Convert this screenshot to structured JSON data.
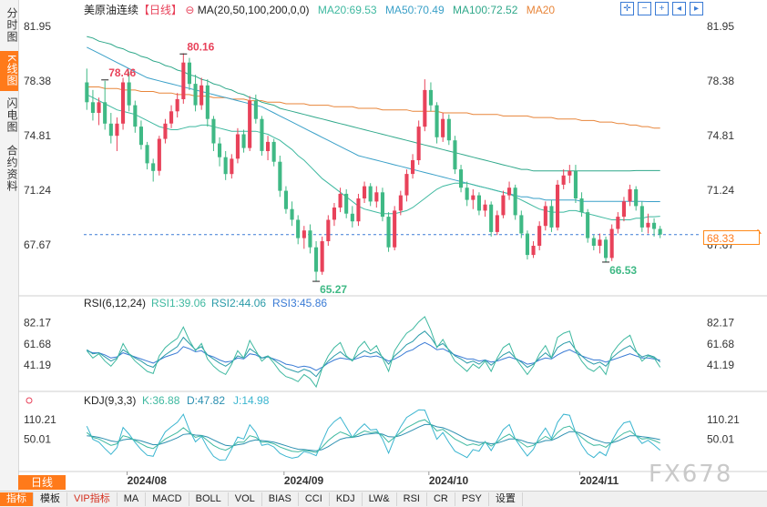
{
  "left_tabs": [
    {
      "label": "分时图",
      "active": false
    },
    {
      "label": "K线图",
      "active": true
    },
    {
      "label": "闪电图",
      "active": false
    },
    {
      "label": "合约资料",
      "active": false
    }
  ],
  "header": {
    "name": "美原油连续",
    "period": "【日线】",
    "ma_label": "MA(20,50,100,200,0,0)",
    "ma20": "MA20:69.53",
    "ma50": "MA50:70.49",
    "ma100": "MA100:72.52",
    "ma20_extra": "MA20"
  },
  "colors": {
    "up": "#e8425a",
    "down": "#3fb985",
    "ma20": "#3fb9a0",
    "ma50": "#3aa0c8",
    "ma100": "#2fa88a",
    "ma200": "#e8853a",
    "dashed": "#3a7bd5",
    "accent": "#ff7a1a"
  },
  "price_axis": {
    "ticks": [
      "81.95",
      "78.38",
      "74.81",
      "71.24",
      "67.67"
    ],
    "current_price": "68.33",
    "high_label": "80.16",
    "high_label_2": "78.46",
    "low_label": "65.27",
    "low_label_2": "66.53"
  },
  "rsi": {
    "label": "RSI(6,12,24)",
    "rsi1": "RSI1:39.06",
    "rsi2": "RSI2:44.06",
    "rsi3": "RSI3:45.86",
    "ticks": [
      "82.17",
      "61.68",
      "41.19"
    ]
  },
  "kdj": {
    "label": "KDJ(9,3,3)",
    "k": "K:36.88",
    "d": "D:47.82",
    "j": "J:14.98",
    "ticks": [
      "110.21",
      "50.01"
    ]
  },
  "date_labels": [
    "2024/08",
    "2024/09",
    "2024/10",
    "2024/11"
  ],
  "period_button": "日线",
  "bottom_tabs": [
    "指标",
    "模板",
    "VIP指标",
    "MA",
    "MACD",
    "BOLL",
    "VOL",
    "BIAS",
    "CCI",
    "KDJ",
    "LW&",
    "RSI",
    "CR",
    "PSY",
    "设置"
  ],
  "watermark": "FX678",
  "chart_data": {
    "type": "candlestick",
    "ylim": [
      64.5,
      82.5
    ],
    "candles": [
      [
        78.3,
        79.2,
        76.5,
        77.0
      ],
      [
        77.0,
        77.8,
        75.8,
        76.3
      ],
      [
        76.3,
        77.3,
        75.5,
        77.0
      ],
      [
        77.0,
        78.4,
        75.2,
        75.6
      ],
      [
        75.6,
        76.3,
        74.3,
        74.8
      ],
      [
        74.8,
        76.0,
        73.8,
        75.6
      ],
      [
        75.6,
        78.6,
        75.2,
        78.3
      ],
      [
        78.3,
        79.0,
        76.4,
        76.8
      ],
      [
        76.8,
        77.1,
        75.0,
        75.4
      ],
      [
        75.4,
        75.8,
        73.9,
        74.2
      ],
      [
        74.2,
        74.4,
        72.6,
        73.0
      ],
      [
        73.0,
        73.3,
        71.8,
        72.5
      ],
      [
        72.5,
        74.8,
        72.2,
        74.6
      ],
      [
        74.6,
        75.9,
        74.3,
        75.6
      ],
      [
        75.6,
        76.8,
        75.3,
        76.4
      ],
      [
        76.4,
        77.6,
        76.0,
        77.2
      ],
      [
        77.2,
        80.2,
        76.9,
        79.6
      ],
      [
        79.6,
        79.9,
        77.8,
        78.2
      ],
      [
        78.2,
        78.8,
        76.4,
        76.8
      ],
      [
        76.8,
        78.6,
        76.5,
        78.1
      ],
      [
        78.1,
        78.5,
        75.4,
        75.9
      ],
      [
        75.9,
        76.1,
        73.8,
        74.3
      ],
      [
        74.3,
        74.7,
        72.8,
        73.4
      ],
      [
        73.4,
        73.8,
        71.9,
        72.3
      ],
      [
        72.3,
        73.6,
        72.0,
        73.3
      ],
      [
        73.3,
        75.3,
        73.0,
        74.9
      ],
      [
        74.9,
        75.2,
        73.7,
        74.0
      ],
      [
        74.0,
        77.4,
        73.8,
        77.1
      ],
      [
        77.1,
        77.5,
        75.6,
        75.9
      ],
      [
        75.9,
        76.1,
        73.5,
        73.8
      ],
      [
        73.8,
        74.8,
        73.2,
        74.4
      ],
      [
        74.4,
        74.6,
        72.8,
        73.1
      ],
      [
        73.1,
        73.5,
        70.8,
        71.2
      ],
      [
        71.2,
        71.5,
        69.7,
        70.0
      ],
      [
        70.0,
        70.5,
        68.9,
        69.3
      ],
      [
        69.3,
        69.6,
        67.7,
        68.1
      ],
      [
        68.1,
        68.9,
        67.4,
        68.6
      ],
      [
        68.6,
        69.0,
        67.1,
        67.5
      ],
      [
        67.5,
        67.9,
        65.3,
        65.9
      ],
      [
        65.9,
        68.2,
        65.7,
        67.9
      ],
      [
        67.9,
        69.6,
        67.6,
        69.3
      ],
      [
        69.3,
        70.4,
        68.9,
        70.1
      ],
      [
        70.1,
        71.4,
        69.8,
        71.0
      ],
      [
        71.0,
        71.3,
        69.4,
        69.7
      ],
      [
        69.7,
        70.2,
        68.8,
        69.2
      ],
      [
        69.2,
        71.0,
        68.9,
        70.7
      ],
      [
        70.7,
        71.8,
        70.4,
        71.5
      ],
      [
        71.5,
        71.7,
        70.2,
        70.5
      ],
      [
        70.5,
        71.5,
        70.1,
        71.1
      ],
      [
        71.1,
        71.4,
        69.2,
        69.5
      ],
      [
        69.5,
        69.8,
        67.2,
        67.5
      ],
      [
        67.5,
        70.2,
        67.3,
        69.9
      ],
      [
        69.9,
        71.2,
        69.6,
        70.9
      ],
      [
        70.9,
        72.6,
        70.5,
        72.3
      ],
      [
        72.3,
        73.6,
        72.0,
        73.2
      ],
      [
        73.2,
        75.8,
        72.9,
        75.4
      ],
      [
        75.4,
        78.5,
        75.1,
        77.8
      ],
      [
        77.8,
        78.3,
        76.4,
        76.8
      ],
      [
        76.8,
        77.0,
        74.3,
        74.7
      ],
      [
        74.7,
        76.3,
        74.4,
        75.9
      ],
      [
        75.9,
        76.2,
        74.2,
        74.5
      ],
      [
        74.5,
        74.8,
        72.3,
        72.6
      ],
      [
        72.6,
        72.9,
        71.1,
        71.4
      ],
      [
        71.4,
        71.8,
        70.2,
        70.6
      ],
      [
        70.6,
        71.3,
        70.0,
        70.9
      ],
      [
        70.9,
        71.1,
        69.6,
        69.9
      ],
      [
        69.9,
        70.6,
        69.5,
        70.3
      ],
      [
        70.3,
        70.5,
        68.2,
        68.5
      ],
      [
        68.5,
        69.9,
        68.3,
        69.6
      ],
      [
        69.6,
        71.2,
        69.4,
        70.9
      ],
      [
        70.9,
        71.8,
        70.6,
        71.4
      ],
      [
        71.4,
        71.6,
        69.3,
        69.6
      ],
      [
        69.6,
        69.9,
        68.1,
        68.4
      ],
      [
        68.4,
        68.6,
        66.7,
        67.0
      ],
      [
        67.0,
        67.9,
        66.8,
        67.6
      ],
      [
        67.6,
        69.2,
        67.3,
        68.9
      ],
      [
        68.9,
        70.5,
        68.6,
        70.2
      ],
      [
        70.2,
        70.6,
        68.5,
        68.8
      ],
      [
        68.8,
        71.9,
        68.6,
        71.6
      ],
      [
        71.6,
        72.6,
        71.3,
        72.2
      ],
      [
        72.2,
        72.9,
        71.7,
        72.5
      ],
      [
        72.5,
        72.9,
        70.4,
        70.7
      ],
      [
        70.7,
        71.1,
        69.5,
        69.8
      ],
      [
        69.8,
        70.0,
        67.8,
        68.1
      ],
      [
        68.1,
        68.3,
        67.3,
        67.6
      ],
      [
        67.6,
        68.4,
        67.1,
        68.0
      ],
      [
        68.0,
        68.2,
        66.5,
        66.8
      ],
      [
        66.8,
        69.0,
        66.6,
        68.7
      ],
      [
        68.7,
        69.8,
        68.4,
        69.5
      ],
      [
        69.5,
        70.8,
        69.2,
        70.5
      ],
      [
        70.5,
        71.6,
        70.2,
        71.3
      ],
      [
        71.3,
        71.5,
        69.9,
        70.2
      ],
      [
        70.2,
        70.5,
        68.5,
        68.8
      ],
      [
        68.8,
        69.7,
        68.4,
        69.1
      ],
      [
        69.1,
        69.4,
        68.2,
        68.7
      ],
      [
        68.7,
        68.9,
        68.1,
        68.33
      ]
    ],
    "ma20": [
      77.5,
      77.3,
      77.1,
      76.9,
      76.7,
      76.5,
      76.4,
      76.3,
      76.2,
      76.0,
      75.8,
      75.6,
      75.4,
      75.3,
      75.2,
      75.2,
      75.3,
      75.4,
      75.4,
      75.5,
      75.5,
      75.4,
      75.3,
      75.2,
      75.1,
      75.1,
      75.1,
      75.1,
      75.1,
      75.0,
      74.9,
      74.7,
      74.5,
      74.2,
      73.9,
      73.5,
      73.2,
      72.8,
      72.4,
      72.0,
      71.7,
      71.4,
      71.1,
      70.8,
      70.5,
      70.2,
      70.0,
      69.9,
      69.8,
      69.7,
      69.7,
      69.7,
      69.8,
      69.9,
      70.1,
      70.4,
      70.7,
      71.0,
      71.3,
      71.5,
      71.6,
      71.7,
      71.7,
      71.7,
      71.6,
      71.5,
      71.4,
      71.3,
      71.2,
      71.1,
      71.0,
      70.8,
      70.6,
      70.4,
      70.2,
      70.0,
      69.9,
      69.8,
      69.8,
      69.8,
      69.9,
      69.9,
      69.8,
      69.7,
      69.6,
      69.5,
      69.4,
      69.3,
      69.3,
      69.3,
      69.3,
      69.4,
      69.4,
      69.5,
      69.5,
      69.53
    ],
    "ma50": [
      80.6,
      80.4,
      80.2,
      80.0,
      79.8,
      79.6,
      79.4,
      79.2,
      79.0,
      78.8,
      78.6,
      78.5,
      78.4,
      78.3,
      78.2,
      78.1,
      78.0,
      77.9,
      77.8,
      77.7,
      77.6,
      77.5,
      77.4,
      77.3,
      77.2,
      77.1,
      77.0,
      76.9,
      76.8,
      76.7,
      76.5,
      76.3,
      76.1,
      75.9,
      75.7,
      75.5,
      75.3,
      75.1,
      74.9,
      74.7,
      74.5,
      74.3,
      74.1,
      73.9,
      73.7,
      73.5,
      73.4,
      73.3,
      73.2,
      73.1,
      73.0,
      72.9,
      72.8,
      72.7,
      72.6,
      72.5,
      72.4,
      72.3,
      72.2,
      72.1,
      72.0,
      71.9,
      71.8,
      71.7,
      71.6,
      71.5,
      71.4,
      71.3,
      71.2,
      71.1,
      71.0,
      70.9,
      70.8,
      70.8,
      70.7,
      70.7,
      70.6,
      70.6,
      70.6,
      70.6,
      70.6,
      70.6,
      70.5,
      70.5,
      70.5,
      70.5,
      70.5,
      70.5,
      70.5,
      70.5,
      70.5,
      70.5,
      70.5,
      70.49,
      70.49,
      70.49
    ],
    "ma100": [
      81.3,
      81.2,
      81.0,
      80.9,
      80.8,
      80.6,
      80.5,
      80.3,
      80.2,
      80.0,
      79.9,
      79.7,
      79.6,
      79.4,
      79.3,
      79.1,
      79.0,
      78.8,
      78.7,
      78.5,
      78.4,
      78.2,
      78.1,
      77.9,
      77.8,
      77.6,
      77.5,
      77.3,
      77.2,
      77.0,
      76.9,
      76.8,
      76.6,
      76.5,
      76.4,
      76.3,
      76.2,
      76.1,
      76.0,
      75.9,
      75.8,
      75.7,
      75.6,
      75.5,
      75.4,
      75.3,
      75.2,
      75.1,
      75.0,
      74.9,
      74.8,
      74.7,
      74.6,
      74.5,
      74.4,
      74.3,
      74.2,
      74.1,
      74.0,
      73.9,
      73.8,
      73.7,
      73.6,
      73.5,
      73.4,
      73.3,
      73.2,
      73.1,
      73.0,
      72.9,
      72.8,
      72.7,
      72.6,
      72.6,
      72.5,
      72.5,
      72.5,
      72.5,
      72.5,
      72.5,
      72.5,
      72.5,
      72.5,
      72.5,
      72.5,
      72.5,
      72.5,
      72.5,
      72.5,
      72.5,
      72.5,
      72.52,
      72.52,
      72.52,
      72.52,
      72.52
    ],
    "ma200": [
      78.0,
      78.0,
      78.0,
      77.9,
      77.9,
      77.9,
      77.8,
      77.8,
      77.8,
      77.7,
      77.7,
      77.7,
      77.6,
      77.6,
      77.6,
      77.5,
      77.5,
      77.5,
      77.4,
      77.4,
      77.4,
      77.3,
      77.3,
      77.3,
      77.2,
      77.2,
      77.2,
      77.1,
      77.1,
      77.1,
      77.0,
      77.0,
      77.0,
      76.9,
      76.9,
      76.9,
      76.9,
      76.8,
      76.8,
      76.8,
      76.8,
      76.7,
      76.7,
      76.7,
      76.7,
      76.6,
      76.6,
      76.6,
      76.6,
      76.5,
      76.5,
      76.5,
      76.5,
      76.5,
      76.4,
      76.4,
      76.4,
      76.4,
      76.4,
      76.3,
      76.3,
      76.3,
      76.3,
      76.3,
      76.2,
      76.2,
      76.2,
      76.2,
      76.2,
      76.1,
      76.1,
      76.1,
      76.1,
      76.1,
      76.0,
      76.0,
      76.0,
      76.0,
      75.9,
      75.9,
      75.9,
      75.9,
      75.8,
      75.8,
      75.8,
      75.7,
      75.7,
      75.7,
      75.6,
      75.6,
      75.5,
      75.5,
      75.4,
      75.4,
      75.3,
      75.3
    ],
    "rsi_ylim": [
      20,
      95
    ],
    "rsi1": [
      55,
      48,
      52,
      45,
      40,
      47,
      62,
      52,
      45,
      40,
      35,
      33,
      50,
      58,
      63,
      67,
      78,
      65,
      55,
      62,
      47,
      40,
      35,
      32,
      42,
      55,
      48,
      65,
      55,
      45,
      50,
      43,
      35,
      30,
      28,
      25,
      32,
      28,
      20,
      38,
      50,
      58,
      63,
      50,
      45,
      58,
      64,
      55,
      60,
      48,
      35,
      55,
      64,
      72,
      76,
      83,
      88,
      75,
      58,
      66,
      55,
      45,
      40,
      35,
      42,
      38,
      45,
      35,
      48,
      58,
      62,
      48,
      40,
      32,
      40,
      52,
      60,
      48,
      68,
      72,
      74,
      55,
      45,
      38,
      35,
      40,
      32,
      52,
      60,
      66,
      70,
      55,
      45,
      50,
      48,
      39
    ],
    "rsi2": [
      56,
      52,
      53,
      49,
      45,
      48,
      56,
      52,
      48,
      45,
      41,
      39,
      46,
      51,
      55,
      59,
      68,
      62,
      56,
      59,
      51,
      47,
      43,
      40,
      44,
      50,
      48,
      57,
      53,
      48,
      50,
      46,
      42,
      38,
      36,
      34,
      37,
      35,
      30,
      38,
      45,
      50,
      54,
      49,
      46,
      51,
      55,
      52,
      54,
      49,
      42,
      50,
      55,
      61,
      64,
      70,
      74,
      68,
      59,
      62,
      56,
      50,
      47,
      43,
      45,
      42,
      46,
      41,
      46,
      51,
      54,
      48,
      44,
      39,
      42,
      48,
      53,
      48,
      58,
      62,
      64,
      56,
      50,
      45,
      42,
      44,
      40,
      48,
      53,
      57,
      60,
      54,
      49,
      51,
      49,
      44
    ],
    "rsi3": [
      55,
      53,
      53,
      51,
      48,
      49,
      53,
      51,
      49,
      47,
      45,
      43,
      46,
      49,
      51,
      53,
      59,
      57,
      54,
      55,
      51,
      49,
      46,
      44,
      45,
      48,
      47,
      52,
      51,
      48,
      49,
      47,
      45,
      42,
      41,
      39,
      40,
      39,
      36,
      39,
      43,
      46,
      48,
      47,
      46,
      48,
      50,
      49,
      50,
      48,
      45,
      47,
      50,
      54,
      56,
      60,
      63,
      60,
      56,
      57,
      54,
      51,
      49,
      47,
      47,
      45,
      46,
      44,
      45,
      47,
      49,
      47,
      45,
      42,
      43,
      46,
      48,
      47,
      51,
      54,
      56,
      53,
      50,
      48,
      46,
      46,
      44,
      46,
      48,
      50,
      52,
      50,
      48,
      48,
      47,
      45.86
    ],
    "kdj_ylim": [
      -40,
      150
    ],
    "k": [
      70,
      55,
      50,
      40,
      30,
      35,
      60,
      55,
      45,
      35,
      25,
      20,
      35,
      50,
      60,
      70,
      85,
      70,
      55,
      60,
      45,
      30,
      20,
      15,
      25,
      40,
      40,
      60,
      55,
      40,
      40,
      35,
      25,
      18,
      12,
      10,
      15,
      12,
      8,
      25,
      45,
      60,
      72,
      65,
      55,
      65,
      75,
      70,
      72,
      60,
      40,
      55,
      70,
      85,
      95,
      105,
      110,
      95,
      75,
      80,
      65,
      50,
      40,
      30,
      35,
      30,
      40,
      28,
      40,
      55,
      65,
      50,
      38,
      25,
      30,
      45,
      58,
      48,
      70,
      85,
      90,
      72,
      55,
      40,
      30,
      32,
      24,
      40,
      55,
      68,
      75,
      60,
      50,
      52,
      45,
      37
    ],
    "d": [
      60,
      58,
      55,
      50,
      44,
      41,
      47,
      50,
      48,
      44,
      38,
      32,
      33,
      39,
      46,
      54,
      64,
      66,
      62,
      61,
      56,
      47,
      38,
      30,
      28,
      32,
      35,
      43,
      47,
      45,
      43,
      40,
      35,
      29,
      23,
      18,
      17,
      15,
      13,
      17,
      26,
      38,
      49,
      54,
      55,
      58,
      64,
      66,
      68,
      65,
      57,
      56,
      61,
      69,
      78,
      87,
      95,
      95,
      88,
      85,
      78,
      69,
      59,
      49,
      44,
      39,
      39,
      35,
      37,
      43,
      50,
      50,
      46,
      39,
      36,
      39,
      45,
      46,
      54,
      64,
      73,
      73,
      67,
      58,
      49,
      43,
      37,
      38,
      44,
      52,
      60,
      60,
      57,
      55,
      52,
      47.82
    ],
    "j": [
      90,
      49,
      40,
      20,
      2,
      23,
      86,
      65,
      39,
      17,
      -1,
      -4,
      39,
      72,
      88,
      102,
      127,
      78,
      41,
      58,
      23,
      -4,
      -16,
      -15,
      19,
      56,
      50,
      94,
      71,
      30,
      34,
      25,
      5,
      -4,
      -10,
      -6,
      11,
      6,
      -2,
      41,
      83,
      104,
      118,
      87,
      55,
      79,
      97,
      78,
      80,
      50,
      6,
      53,
      88,
      117,
      129,
      141,
      140,
      95,
      49,
      70,
      39,
      12,
      2,
      -8,
      17,
      12,
      42,
      14,
      46,
      79,
      95,
      50,
      22,
      -3,
      18,
      57,
      84,
      52,
      102,
      127,
      124,
      70,
      31,
      4,
      -8,
      10,
      -2,
      44,
      77,
      100,
      105,
      60,
      36,
      46,
      31,
      14.98
    ]
  }
}
